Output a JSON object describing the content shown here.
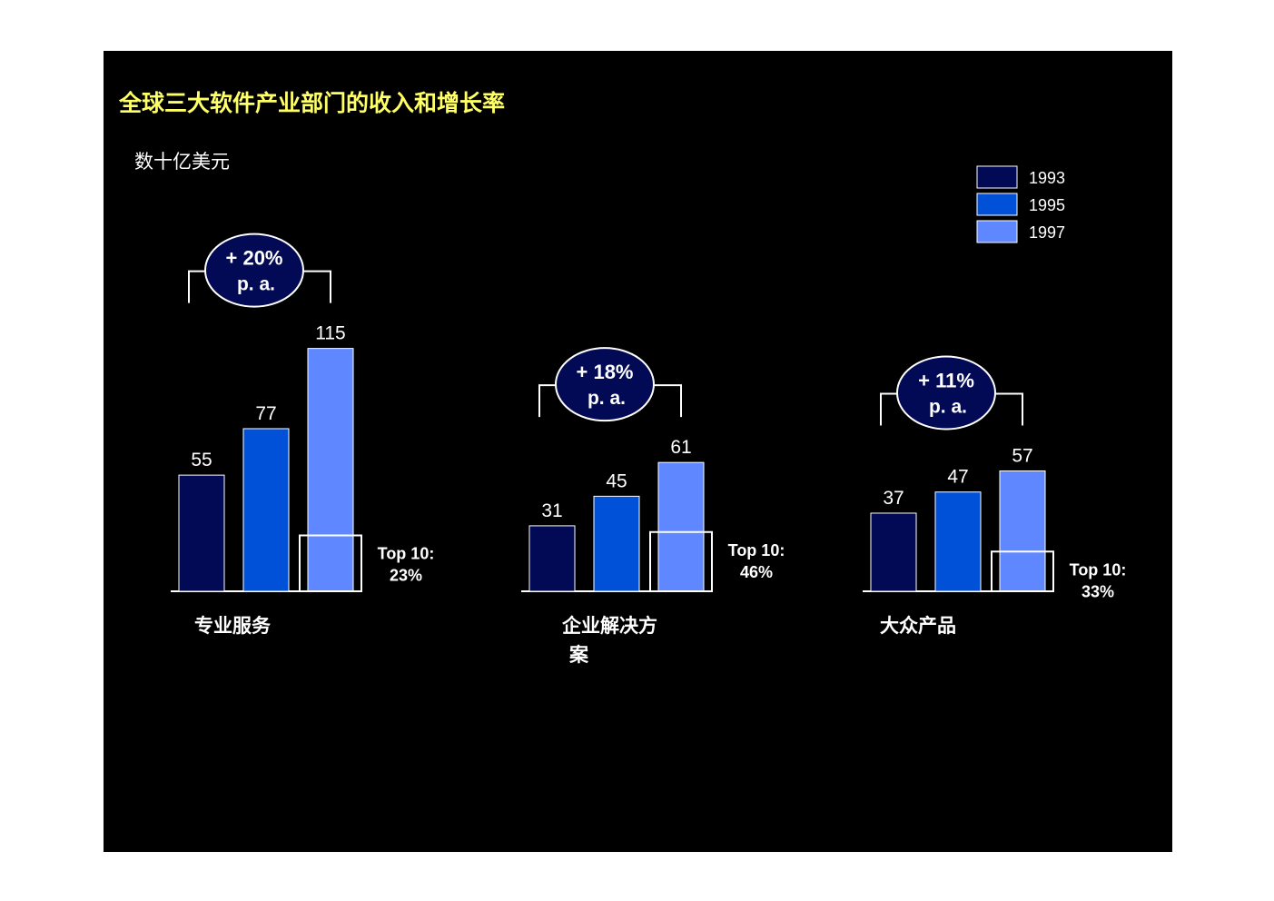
{
  "title": "全球三大软件产业部门的收入和增长率",
  "unit": "数十亿美元",
  "colors": {
    "y1993": "#020a55",
    "y1995": "#0050d8",
    "y1997": "#5f87ff",
    "title": "#ffff66",
    "bubble": "#020a55"
  },
  "chart_data": {
    "type": "bar",
    "series": [
      {
        "name": "1993",
        "values": [
          55,
          31,
          37
        ]
      },
      {
        "name": "1995",
        "values": [
          77,
          45,
          47
        ]
      },
      {
        "name": "1997",
        "values": [
          115,
          61,
          57
        ]
      }
    ],
    "categories": [
      "专业服务",
      "企业解决方案",
      "大众产品"
    ],
    "growth": [
      "+ 20%",
      "+ 18%",
      "+ 11%"
    ],
    "growth_unit": "p. a.",
    "top10_label": "Top 10:",
    "top10_share": [
      "23%",
      "46%",
      "33%"
    ],
    "legend_placement": "top-right",
    "grid": false
  }
}
